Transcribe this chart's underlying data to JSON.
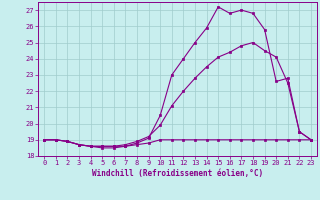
{
  "xlabel": "Windchill (Refroidissement éolien,°C)",
  "xlim": [
    -0.5,
    23.5
  ],
  "ylim": [
    18,
    27.5
  ],
  "yticks": [
    18,
    19,
    20,
    21,
    22,
    23,
    24,
    25,
    26,
    27
  ],
  "xticks": [
    0,
    1,
    2,
    3,
    4,
    5,
    6,
    7,
    8,
    9,
    10,
    11,
    12,
    13,
    14,
    15,
    16,
    17,
    18,
    19,
    20,
    21,
    22,
    23
  ],
  "background_color": "#c8eeee",
  "grid_color": "#a0cccc",
  "line_color": "#880088",
  "line1_x": [
    0,
    1,
    2,
    3,
    4,
    5,
    6,
    7,
    8,
    9,
    10,
    11,
    12,
    13,
    14,
    15,
    16,
    17,
    18,
    19,
    20,
    21,
    22,
    23
  ],
  "line1_y": [
    19.0,
    19.0,
    18.9,
    18.7,
    18.6,
    18.6,
    18.6,
    18.6,
    18.7,
    18.8,
    19.0,
    19.0,
    19.0,
    19.0,
    19.0,
    19.0,
    19.0,
    19.0,
    19.0,
    19.0,
    19.0,
    19.0,
    19.0,
    19.0
  ],
  "line2_x": [
    0,
    1,
    2,
    3,
    4,
    5,
    6,
    7,
    8,
    9,
    10,
    11,
    12,
    13,
    14,
    15,
    16,
    17,
    18,
    19,
    20,
    21,
    22,
    23
  ],
  "line2_y": [
    19.0,
    19.0,
    18.9,
    18.7,
    18.6,
    18.6,
    18.6,
    18.7,
    18.9,
    19.2,
    19.9,
    21.1,
    22.0,
    22.8,
    23.5,
    24.1,
    24.4,
    24.8,
    25.0,
    24.5,
    24.1,
    22.5,
    19.5,
    19.0
  ],
  "line3_x": [
    0,
    1,
    2,
    3,
    4,
    5,
    6,
    7,
    8,
    9,
    10,
    11,
    12,
    13,
    14,
    15,
    16,
    17,
    18,
    19,
    20,
    21,
    22,
    23
  ],
  "line3_y": [
    19.0,
    19.0,
    18.9,
    18.7,
    18.6,
    18.5,
    18.5,
    18.6,
    18.8,
    19.1,
    20.5,
    23.0,
    24.0,
    25.0,
    25.9,
    27.2,
    26.8,
    27.0,
    26.8,
    25.8,
    22.6,
    22.8,
    19.5,
    19.0
  ]
}
